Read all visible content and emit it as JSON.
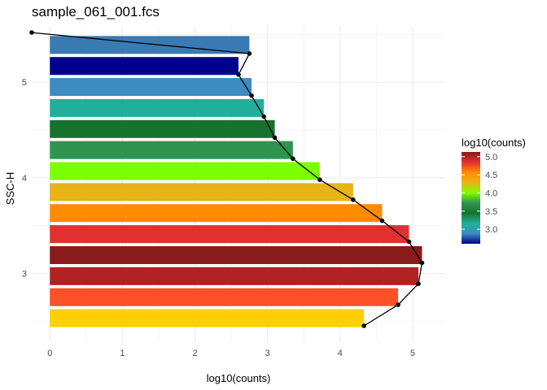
{
  "chart_data": {
    "type": "bar",
    "orientation": "horizontal",
    "title": "sample_061_001.fcs",
    "xlabel": "log10(counts)",
    "ylabel": "SSC-H",
    "xlim": [
      -0.25,
      5.45
    ],
    "ylim": [
      2.28,
      5.58
    ],
    "x_ticks": [
      0,
      1,
      2,
      3,
      4,
      5
    ],
    "y_ticks": [
      3,
      4,
      5
    ],
    "grid": true,
    "bars": [
      {
        "y": 5.39,
        "value": 2.75,
        "color": "#3a7ab3"
      },
      {
        "y": 5.17,
        "value": 2.6,
        "color": "#00008b"
      },
      {
        "y": 4.95,
        "value": 2.78,
        "color": "#3d8cc0"
      },
      {
        "y": 4.73,
        "value": 2.95,
        "color": "#20b09a"
      },
      {
        "y": 4.51,
        "value": 3.1,
        "color": "#17722e"
      },
      {
        "y": 4.29,
        "value": 3.35,
        "color": "#2e9450"
      },
      {
        "y": 4.07,
        "value": 3.72,
        "color": "#7cff00"
      },
      {
        "y": 3.85,
        "value": 4.18,
        "color": "#e8b417"
      },
      {
        "y": 3.63,
        "value": 4.58,
        "color": "#ff8c00"
      },
      {
        "y": 3.41,
        "value": 4.95,
        "color": "#e03030"
      },
      {
        "y": 3.19,
        "value": 5.13,
        "color": "#8b1a1a"
      },
      {
        "y": 2.97,
        "value": 5.08,
        "color": "#b22222"
      },
      {
        "y": 2.75,
        "value": 4.8,
        "color": "#ff5028"
      },
      {
        "y": 2.53,
        "value": 4.33,
        "color": "#ffd000"
      }
    ],
    "line": [
      {
        "x": -0.25,
        "y": 5.52
      },
      {
        "x": 2.75,
        "y": 5.3
      },
      {
        "x": 2.6,
        "y": 5.08
      },
      {
        "x": 2.78,
        "y": 4.86
      },
      {
        "x": 2.95,
        "y": 4.64
      },
      {
        "x": 3.1,
        "y": 4.42
      },
      {
        "x": 3.35,
        "y": 4.2
      },
      {
        "x": 3.72,
        "y": 3.98
      },
      {
        "x": 4.18,
        "y": 3.77
      },
      {
        "x": 4.58,
        "y": 3.55
      },
      {
        "x": 4.95,
        "y": 3.33
      },
      {
        "x": 5.13,
        "y": 3.11
      },
      {
        "x": 5.08,
        "y": 2.89
      },
      {
        "x": 4.8,
        "y": 2.67
      },
      {
        "x": 4.33,
        "y": 2.45
      }
    ],
    "legend": {
      "title": "log10(counts)",
      "position": "right",
      "range": [
        2.6,
        5.13
      ],
      "ticks": [
        "3.0",
        "3.5",
        "4.0",
        "4.5",
        "5.0"
      ],
      "colors": [
        "#00008b",
        "#3d8cc0",
        "#20b09a",
        "#17722e",
        "#2e9450",
        "#7cff00",
        "#e8b417",
        "#ff8c00",
        "#e03030",
        "#8b1a1a"
      ]
    }
  }
}
